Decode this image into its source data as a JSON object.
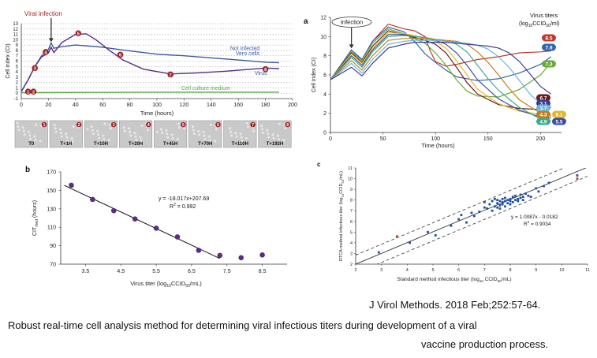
{
  "colors": {
    "axis": "#333333",
    "topLine": "#3b5aa3",
    "virus": "#5a2d82",
    "medium": "#5aa64a",
    "marker": "#a0262a",
    "scatterLine": "#333333",
    "point": "#1f4f9c"
  },
  "chart_data": [
    {
      "id": "topleft",
      "type": "line",
      "title": "",
      "xlabel": "Time (hours)",
      "ylabel": "Cell index (CI)",
      "xlim": [
        0,
        200
      ],
      "ylim": [
        -1,
        13
      ],
      "x_ticks": [
        0,
        20,
        40,
        60,
        80,
        100,
        120,
        140,
        160,
        180,
        200
      ],
      "y_ticks": [
        -1,
        0,
        1,
        2,
        3,
        4,
        5,
        6,
        7,
        8,
        9,
        10,
        11,
        12,
        13
      ],
      "annotations": {
        "infection": "Viral infection",
        "not_infected": "Not infected",
        "vero": "Vero cells",
        "virus": "Virus",
        "medium": "Cell culture medium"
      },
      "series": [
        {
          "name": "Not infected Vero cells",
          "x": [
            0,
            5,
            10,
            15,
            20,
            22,
            24,
            30,
            40,
            60,
            80,
            100,
            120,
            140,
            160,
            180,
            190
          ],
          "y": [
            0.3,
            2.5,
            5,
            7,
            8.2,
            9.4,
            8.4,
            8.7,
            9,
            8.6,
            7.9,
            7.3,
            7,
            6.6,
            6.2,
            5.8,
            5.7
          ]
        },
        {
          "name": "Virus",
          "x": [
            0,
            5,
            10,
            15,
            20,
            22,
            24,
            30,
            40,
            48,
            55,
            65,
            75,
            90,
            110,
            130,
            150,
            170,
            180,
            190
          ],
          "y": [
            0.3,
            2.5,
            5,
            6.8,
            7.5,
            8.6,
            7.6,
            9.5,
            11,
            11.1,
            10,
            8,
            6.2,
            4.5,
            3.6,
            3.8,
            4.1,
            4.5,
            4.7,
            4.6
          ]
        },
        {
          "name": "Cell culture medium",
          "x": [
            0,
            50,
            100,
            150,
            190
          ],
          "y": [
            0.1,
            0.15,
            0.2,
            0.2,
            0.2
          ]
        }
      ],
      "markers": [
        "1",
        "2",
        "3",
        "4",
        "5",
        "6",
        "7",
        "8"
      ]
    },
    {
      "id": "a",
      "type": "line",
      "panel_label": "a",
      "xlabel": "Time (hours)",
      "ylabel": "Cell index (CI)",
      "xlim": [
        0,
        220
      ],
      "ylim": [
        0,
        12
      ],
      "x_ticks": [
        0,
        50,
        100,
        150,
        200
      ],
      "y_ticks": [
        0,
        2,
        4,
        6,
        8,
        10,
        12
      ],
      "infection": "Infection",
      "legend_title": "Virus titers",
      "legend_unit": "(log10CCID50/ml)",
      "titers": [
        "8.5",
        "7.9",
        "7.3",
        "6.7",
        "3.1",
        "3.7",
        "4.3",
        "6.1",
        "4.9",
        "5.5"
      ],
      "titer_colors": [
        "#c0392b",
        "#2e66b0",
        "#6aab3a",
        "#6b1a1a",
        "#3b3b8f",
        "#67b7e0",
        "#c47f1a",
        "#e3b62a",
        "#3fa98f",
        "#3a4f9c"
      ],
      "series": [
        {
          "name": "8.5",
          "x": [
            0,
            20,
            30,
            40,
            55,
            70,
            80,
            90,
            95,
            100,
            110,
            120,
            140,
            160,
            180,
            200,
            210
          ],
          "y": [
            5.5,
            8.6,
            7.6,
            9.5,
            11.3,
            10.8,
            10.6,
            10,
            8.5,
            7.4,
            6.9,
            7.1,
            7.6,
            7.9,
            8.3,
            8.4,
            8.5
          ]
        },
        {
          "name": "7.9",
          "x": [
            0,
            20,
            30,
            40,
            55,
            70,
            80,
            90,
            100,
            110,
            120,
            140,
            160,
            180,
            200,
            210
          ],
          "y": [
            5.5,
            8.6,
            7.6,
            9.5,
            11,
            10.5,
            9.5,
            8.2,
            7.3,
            6.5,
            5.8,
            5.4,
            5.6,
            6.2,
            7.1,
            7.9
          ]
        },
        {
          "name": "7.3",
          "x": [
            0,
            20,
            30,
            40,
            55,
            70,
            80,
            90,
            100,
            110,
            120,
            130,
            140,
            160,
            180,
            200,
            210
          ],
          "y": [
            5.5,
            8.4,
            7.5,
            9.3,
            10.8,
            10.3,
            9.8,
            9.3,
            8.3,
            7,
            5.5,
            4.3,
            3.8,
            3.7,
            4.5,
            6,
            7.3
          ]
        },
        {
          "name": "6.7",
          "x": [
            0,
            20,
            30,
            40,
            55,
            70,
            80,
            90,
            100,
            110,
            120,
            130,
            140,
            160,
            180,
            200,
            210
          ],
          "y": [
            5.5,
            8.3,
            7.3,
            9,
            10.6,
            10.2,
            9.9,
            9.6,
            9.2,
            8.3,
            6.8,
            5.2,
            4,
            2.9,
            2.5,
            2.4,
            2.6
          ]
        },
        {
          "name": "6.1",
          "x": [
            0,
            20,
            30,
            40,
            55,
            70,
            80,
            90,
            100,
            110,
            120,
            130,
            140,
            160,
            180,
            200,
            210
          ],
          "y": [
            5.5,
            8.2,
            7.2,
            8.8,
            10.4,
            10.3,
            10.1,
            9.8,
            9.5,
            8.8,
            7.5,
            6,
            4.5,
            3,
            2.2,
            1.9,
            1.9
          ]
        },
        {
          "name": "5.5",
          "x": [
            0,
            20,
            30,
            40,
            55,
            70,
            80,
            90,
            100,
            110,
            120,
            130,
            140,
            160,
            180,
            200,
            210
          ],
          "y": [
            5.5,
            8,
            7,
            8.6,
            10.2,
            10.2,
            10,
            9.9,
            9.6,
            9.2,
            8.3,
            7,
            5.5,
            3.5,
            2.3,
            1.6,
            1.5
          ]
        },
        {
          "name": "4.9",
          "x": [
            0,
            20,
            30,
            40,
            55,
            70,
            80,
            90,
            100,
            110,
            120,
            130,
            140,
            150,
            160,
            180,
            200,
            210
          ],
          "y": [
            5.5,
            7.8,
            6.8,
            8.4,
            10,
            10.1,
            10,
            9.9,
            9.7,
            9.6,
            9.2,
            8.4,
            7,
            5.6,
            4.4,
            2.6,
            1.4,
            1.2
          ]
        },
        {
          "name": "4.3",
          "x": [
            0,
            20,
            30,
            40,
            55,
            70,
            80,
            90,
            100,
            110,
            120,
            130,
            140,
            150,
            160,
            170,
            180,
            200,
            210
          ],
          "y": [
            5.5,
            7.5,
            6.5,
            8,
            9.6,
            9.8,
            9.8,
            9.8,
            9.7,
            9.6,
            9.5,
            9.2,
            8.4,
            7.3,
            6,
            4.6,
            3.4,
            2,
            1.7
          ]
        },
        {
          "name": "3.7",
          "x": [
            0,
            20,
            30,
            40,
            55,
            70,
            80,
            90,
            100,
            110,
            120,
            130,
            140,
            150,
            160,
            170,
            180,
            190,
            200,
            210
          ],
          "y": [
            5.5,
            7.2,
            6.2,
            7.6,
            9.2,
            9.5,
            9.6,
            9.6,
            9.6,
            9.5,
            9.4,
            9.3,
            9.1,
            8.7,
            7.9,
            6.8,
            5.4,
            4,
            3,
            2.8
          ]
        },
        {
          "name": "3.1",
          "x": [
            0,
            20,
            30,
            40,
            55,
            70,
            80,
            90,
            100,
            110,
            120,
            130,
            140,
            150,
            160,
            170,
            180,
            190,
            200,
            210
          ],
          "y": [
            5.5,
            6.8,
            5.9,
            7.2,
            8.8,
            9.2,
            9.4,
            9.4,
            9.4,
            9.4,
            9.3,
            9.2,
            9.1,
            9,
            8.8,
            8.3,
            7.4,
            6.1,
            4.8,
            4
          ]
        }
      ]
    },
    {
      "id": "b",
      "type": "scatter",
      "panel_label": "b",
      "xlabel_main": "Virus titer (log",
      "xlabel_sub": "10",
      "xlabel_tail": "CCID",
      "xlabel_sub2": "50",
      "xlabel_end": "/mL)",
      "ylabel": "CIT",
      "ylabel_sub": "med",
      "ylabel_tail": " (hours)",
      "xlim": [
        2.8,
        9.2
      ],
      "ylim": [
        70,
        170
      ],
      "x_ticks": [
        3.5,
        4.5,
        5.5,
        6.5,
        7.5,
        8.5
      ],
      "y_ticks": [
        70,
        90,
        110,
        130,
        150,
        170
      ],
      "equation": "y = -18.017x+207.69",
      "r2_label": "R",
      "r2_value": "= 0.992",
      "fit": {
        "slope": -18.017,
        "intercept": 207.69,
        "x_range": [
          2.9,
          7.3
        ]
      },
      "points": {
        "x": [
          3.1,
          3.7,
          4.3,
          4.9,
          5.5,
          6.1,
          6.7,
          7.3,
          7.9,
          8.5
        ],
        "y": [
          155.5,
          140.2,
          128,
          119,
          109,
          99.5,
          85,
          79.5,
          77,
          80
        ]
      }
    },
    {
      "id": "c",
      "type": "scatter",
      "panel_label": "c",
      "xlabel_main": "Standard method infectious titer (log",
      "xlabel_sub": "10",
      "xlabel_tail": " CCID",
      "xlabel_sub2": "50",
      "xlabel_end": "/mL)",
      "ylabel": "RTCA method infectious titer (log",
      "ylabel_sub": "10",
      "ylabel_tail": "CCID",
      "ylabel_sub2": "50",
      "ylabel_end": "/mL)",
      "xlim": [
        2,
        11
      ],
      "ylim": [
        2,
        11
      ],
      "x_ticks": [
        2,
        3,
        4,
        5,
        6,
        7,
        8,
        9,
        10,
        11
      ],
      "y_ticks": [
        2,
        3,
        4,
        5,
        6,
        7,
        8,
        9,
        10,
        11
      ],
      "equation": "y = 1.0087x - 0.0182",
      "r2_label": "R",
      "r2_value": "= 0.9034",
      "fit": {
        "slope": 1.0087,
        "intercept": -0.0182,
        "band": 0.85
      },
      "points": {
        "x": [
          2.9,
          4.1,
          4.8,
          5.1,
          5.7,
          6.0,
          6.1,
          6.3,
          6.5,
          6.6,
          6.8,
          7.0,
          7.0,
          7.1,
          7.2,
          7.3,
          7.3,
          7.4,
          7.4,
          7.5,
          7.5,
          7.5,
          7.6,
          7.6,
          7.6,
          7.7,
          7.7,
          7.7,
          7.8,
          7.8,
          7.8,
          7.9,
          7.9,
          8.0,
          8.0,
          8.0,
          8.1,
          8.1,
          8.2,
          8.2,
          8.3,
          8.3,
          8.4,
          8.4,
          8.5,
          8.5,
          8.6,
          8.7,
          8.8,
          9.0,
          9.1,
          9.3,
          9.5,
          10.6
        ],
        "y": [
          3.1,
          4.0,
          5.0,
          4.7,
          5.6,
          6.2,
          6.6,
          5.9,
          6.8,
          6.5,
          6.9,
          7.3,
          7.8,
          7.2,
          7.6,
          7.0,
          7.9,
          7.4,
          8.1,
          7.3,
          7.7,
          8.0,
          7.5,
          7.9,
          7.2,
          7.6,
          8.1,
          7.8,
          7.4,
          7.9,
          8.2,
          7.7,
          8.0,
          7.6,
          8.1,
          7.9,
          8.3,
          7.8,
          8.0,
          8.4,
          8.1,
          7.9,
          8.2,
          8.5,
          8.3,
          8.0,
          8.6,
          8.4,
          8.3,
          9.1,
          8.8,
          9.3,
          9.6,
          10.3
        ]
      }
    }
  ],
  "thumbnails": [
    {
      "label": "T0",
      "num": "1"
    },
    {
      "label": "T+1H",
      "num": "2"
    },
    {
      "label": "T+10H",
      "num": "3"
    },
    {
      "label": "T+20H",
      "num": "4"
    },
    {
      "label": "T+45H",
      "num": "5"
    },
    {
      "label": "T+70H",
      "num": "6"
    },
    {
      "label": "T+110H",
      "num": "7"
    },
    {
      "label": "T+192H",
      "num": "8"
    }
  ],
  "caption": {
    "citation": "J Virol Methods. 2018 Feb;252:57-64.",
    "line1": "Robust real-time cell analysis method for determining viral infectious titers during development of a viral",
    "line2": "vaccine production process."
  }
}
